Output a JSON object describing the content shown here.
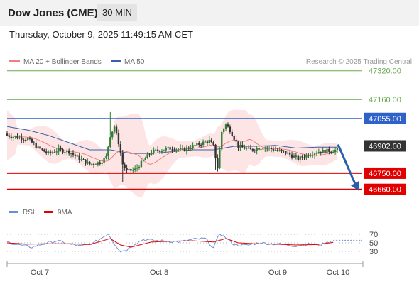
{
  "header": {
    "title": "Dow Jones (CME)",
    "timeframe": "30 MIN",
    "timestamp": "Thursday, October 9, 2025 11:49:15 AM CET"
  },
  "legend": {
    "ma20_label": "MA 20 + Bollinger Bands",
    "ma50_label": "MA 50",
    "credit": "Research © 2025 Trading Central",
    "rsi_label": "RSI",
    "rsi9ma_label": "9MA"
  },
  "colors": {
    "ma20": "#f08080",
    "ma50": "#3a5fa8",
    "bollinger_fill": "#fde0e0",
    "resistance_green": "#6aa84f",
    "pivot_blue": "#2e62c8",
    "support_red": "#e00000",
    "current": "#333333",
    "arrow": "#2a5ea8",
    "rsi": "#6b8fd6",
    "rsi_ma": "#e00000"
  },
  "chart_data": {
    "type": "candlestick",
    "title": "Dow Jones (CME)",
    "timeframe": "30 MIN",
    "x_labels": [
      "Oct 7",
      "Oct 8",
      "Oct 9",
      "Oct 10"
    ],
    "price_range": [
      46560,
      47390
    ],
    "levels": [
      {
        "value": 47320,
        "label": "47320.00",
        "kind": "resistance"
      },
      {
        "value": 47160,
        "label": "47160.00",
        "kind": "resistance"
      },
      {
        "value": 47055,
        "label": "47055.00",
        "kind": "pivot"
      },
      {
        "value": 46902,
        "label": "46902.00",
        "kind": "current"
      },
      {
        "value": 46750,
        "label": "46750.00",
        "kind": "support"
      },
      {
        "value": 46660,
        "label": "46660.00",
        "kind": "support"
      }
    ],
    "close_path": [
      [
        0,
        46960
      ],
      [
        5,
        46950
      ],
      [
        10,
        46940
      ],
      [
        15,
        46890
      ],
      [
        20,
        46860
      ],
      [
        25,
        46880
      ],
      [
        30,
        46870
      ],
      [
        35,
        46830
      ],
      [
        40,
        46800
      ],
      [
        45,
        46810
      ],
      [
        48,
        46840
      ],
      [
        50,
        46960
      ],
      [
        52,
        47010
      ],
      [
        54,
        46920
      ],
      [
        56,
        46800
      ],
      [
        58,
        46760
      ],
      [
        62,
        46770
      ],
      [
        66,
        46820
      ],
      [
        70,
        46870
      ],
      [
        75,
        46880
      ],
      [
        80,
        46890
      ],
      [
        85,
        46880
      ],
      [
        90,
        46900
      ],
      [
        95,
        46920
      ],
      [
        98,
        46930
      ],
      [
        100,
        46900
      ],
      [
        102,
        46780
      ],
      [
        104,
        46980
      ],
      [
        106,
        47020
      ],
      [
        108,
        46990
      ],
      [
        112,
        46900
      ],
      [
        118,
        46880
      ],
      [
        124,
        46895
      ],
      [
        130,
        46880
      ],
      [
        136,
        46860
      ],
      [
        141,
        46830
      ],
      [
        146,
        46855
      ],
      [
        151,
        46870
      ],
      [
        156,
        46875
      ],
      [
        160,
        46880
      ]
    ],
    "ma50_path": [
      [
        0,
        47010
      ],
      [
        10,
        46990
      ],
      [
        20,
        46960
      ],
      [
        30,
        46920
      ],
      [
        40,
        46880
      ],
      [
        50,
        46880
      ],
      [
        60,
        46860
      ],
      [
        70,
        46860
      ],
      [
        80,
        46870
      ],
      [
        90,
        46880
      ],
      [
        100,
        46880
      ],
      [
        110,
        46900
      ],
      [
        120,
        46900
      ],
      [
        130,
        46905
      ],
      [
        140,
        46890
      ],
      [
        150,
        46895
      ],
      [
        160,
        46895
      ]
    ],
    "rsi_levels": [
      70,
      50,
      30
    ],
    "rsi_path": [
      [
        0,
        52
      ],
      [
        6,
        45
      ],
      [
        12,
        40
      ],
      [
        18,
        48
      ],
      [
        24,
        55
      ],
      [
        30,
        47
      ],
      [
        36,
        42
      ],
      [
        42,
        50
      ],
      [
        46,
        62
      ],
      [
        49,
        72
      ],
      [
        52,
        48
      ],
      [
        55,
        30
      ],
      [
        58,
        34
      ],
      [
        62,
        48
      ],
      [
        66,
        58
      ],
      [
        72,
        55
      ],
      [
        78,
        54
      ],
      [
        84,
        52
      ],
      [
        90,
        58
      ],
      [
        96,
        60
      ],
      [
        100,
        38
      ],
      [
        103,
        72
      ],
      [
        106,
        62
      ],
      [
        110,
        46
      ],
      [
        116,
        44
      ],
      [
        122,
        50
      ],
      [
        128,
        48
      ],
      [
        134,
        46
      ],
      [
        140,
        43
      ],
      [
        146,
        47
      ],
      [
        152,
        45
      ],
      [
        158,
        56
      ]
    ],
    "rsi_ma_path": [
      [
        0,
        50
      ],
      [
        10,
        47
      ],
      [
        20,
        48
      ],
      [
        30,
        48
      ],
      [
        40,
        46
      ],
      [
        50,
        60
      ],
      [
        55,
        45
      ],
      [
        60,
        40
      ],
      [
        70,
        52
      ],
      [
        80,
        54
      ],
      [
        90,
        55
      ],
      [
        100,
        52
      ],
      [
        106,
        60
      ],
      [
        112,
        50
      ],
      [
        120,
        48
      ],
      [
        130,
        47
      ],
      [
        140,
        45
      ],
      [
        150,
        46
      ],
      [
        158,
        51
      ]
    ]
  }
}
